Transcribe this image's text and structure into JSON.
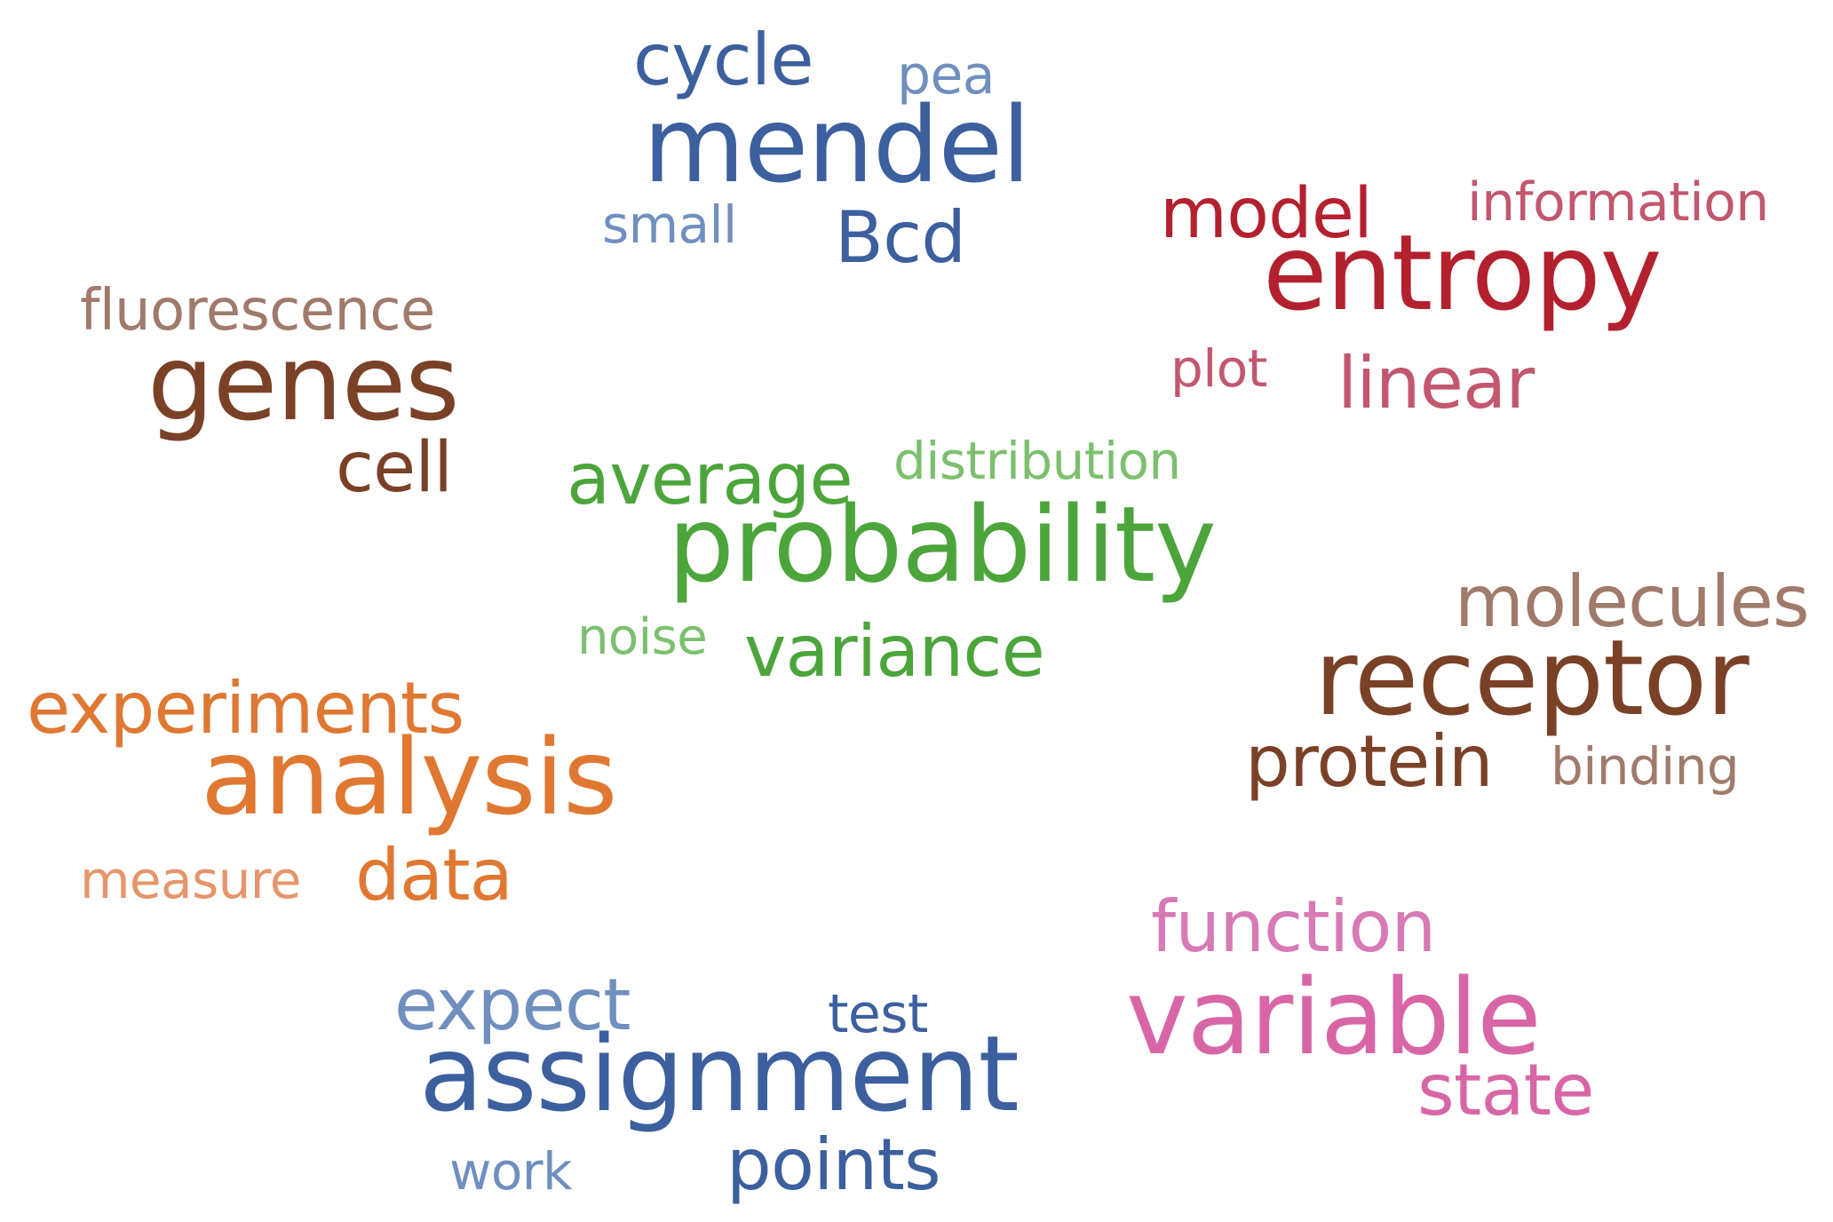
{
  "colors": {
    "blue_dark": "#3c5f9e",
    "blue_light": "#6f8fbf",
    "red_dark": "#b3202e",
    "red_pink": "#c2576d",
    "brown_dark": "#7a4127",
    "brown_light": "#a07a6a",
    "green_dark": "#4ca53b",
    "green_light": "#7cc06e",
    "orange_dark": "#e07832",
    "orange_light": "#e6956a",
    "pink_dark": "#d866a6",
    "pink_light": "#d77ab6"
  },
  "words": {
    "cycle": "cycle",
    "pea": "pea",
    "mendel": "mendel",
    "small": "small",
    "bcd": "Bcd",
    "model": "model",
    "information": "information",
    "entropy": "entropy",
    "plot": "plot",
    "linear": "linear",
    "fluorescence": "fluorescence",
    "genes": "genes",
    "cell": "cell",
    "average": "average",
    "distribution": "distribution",
    "probability": "probability",
    "noise": "noise",
    "variance": "variance",
    "molecules": "molecules",
    "receptor": "receptor",
    "protein": "protein",
    "binding": "binding",
    "experiments": "experiments",
    "analysis": "analysis",
    "measure": "measure",
    "data": "data",
    "function": "function",
    "variable": "variable",
    "state": "state",
    "expect": "expect",
    "test": "test",
    "assignment": "assignment",
    "work": "work",
    "points": "points"
  }
}
